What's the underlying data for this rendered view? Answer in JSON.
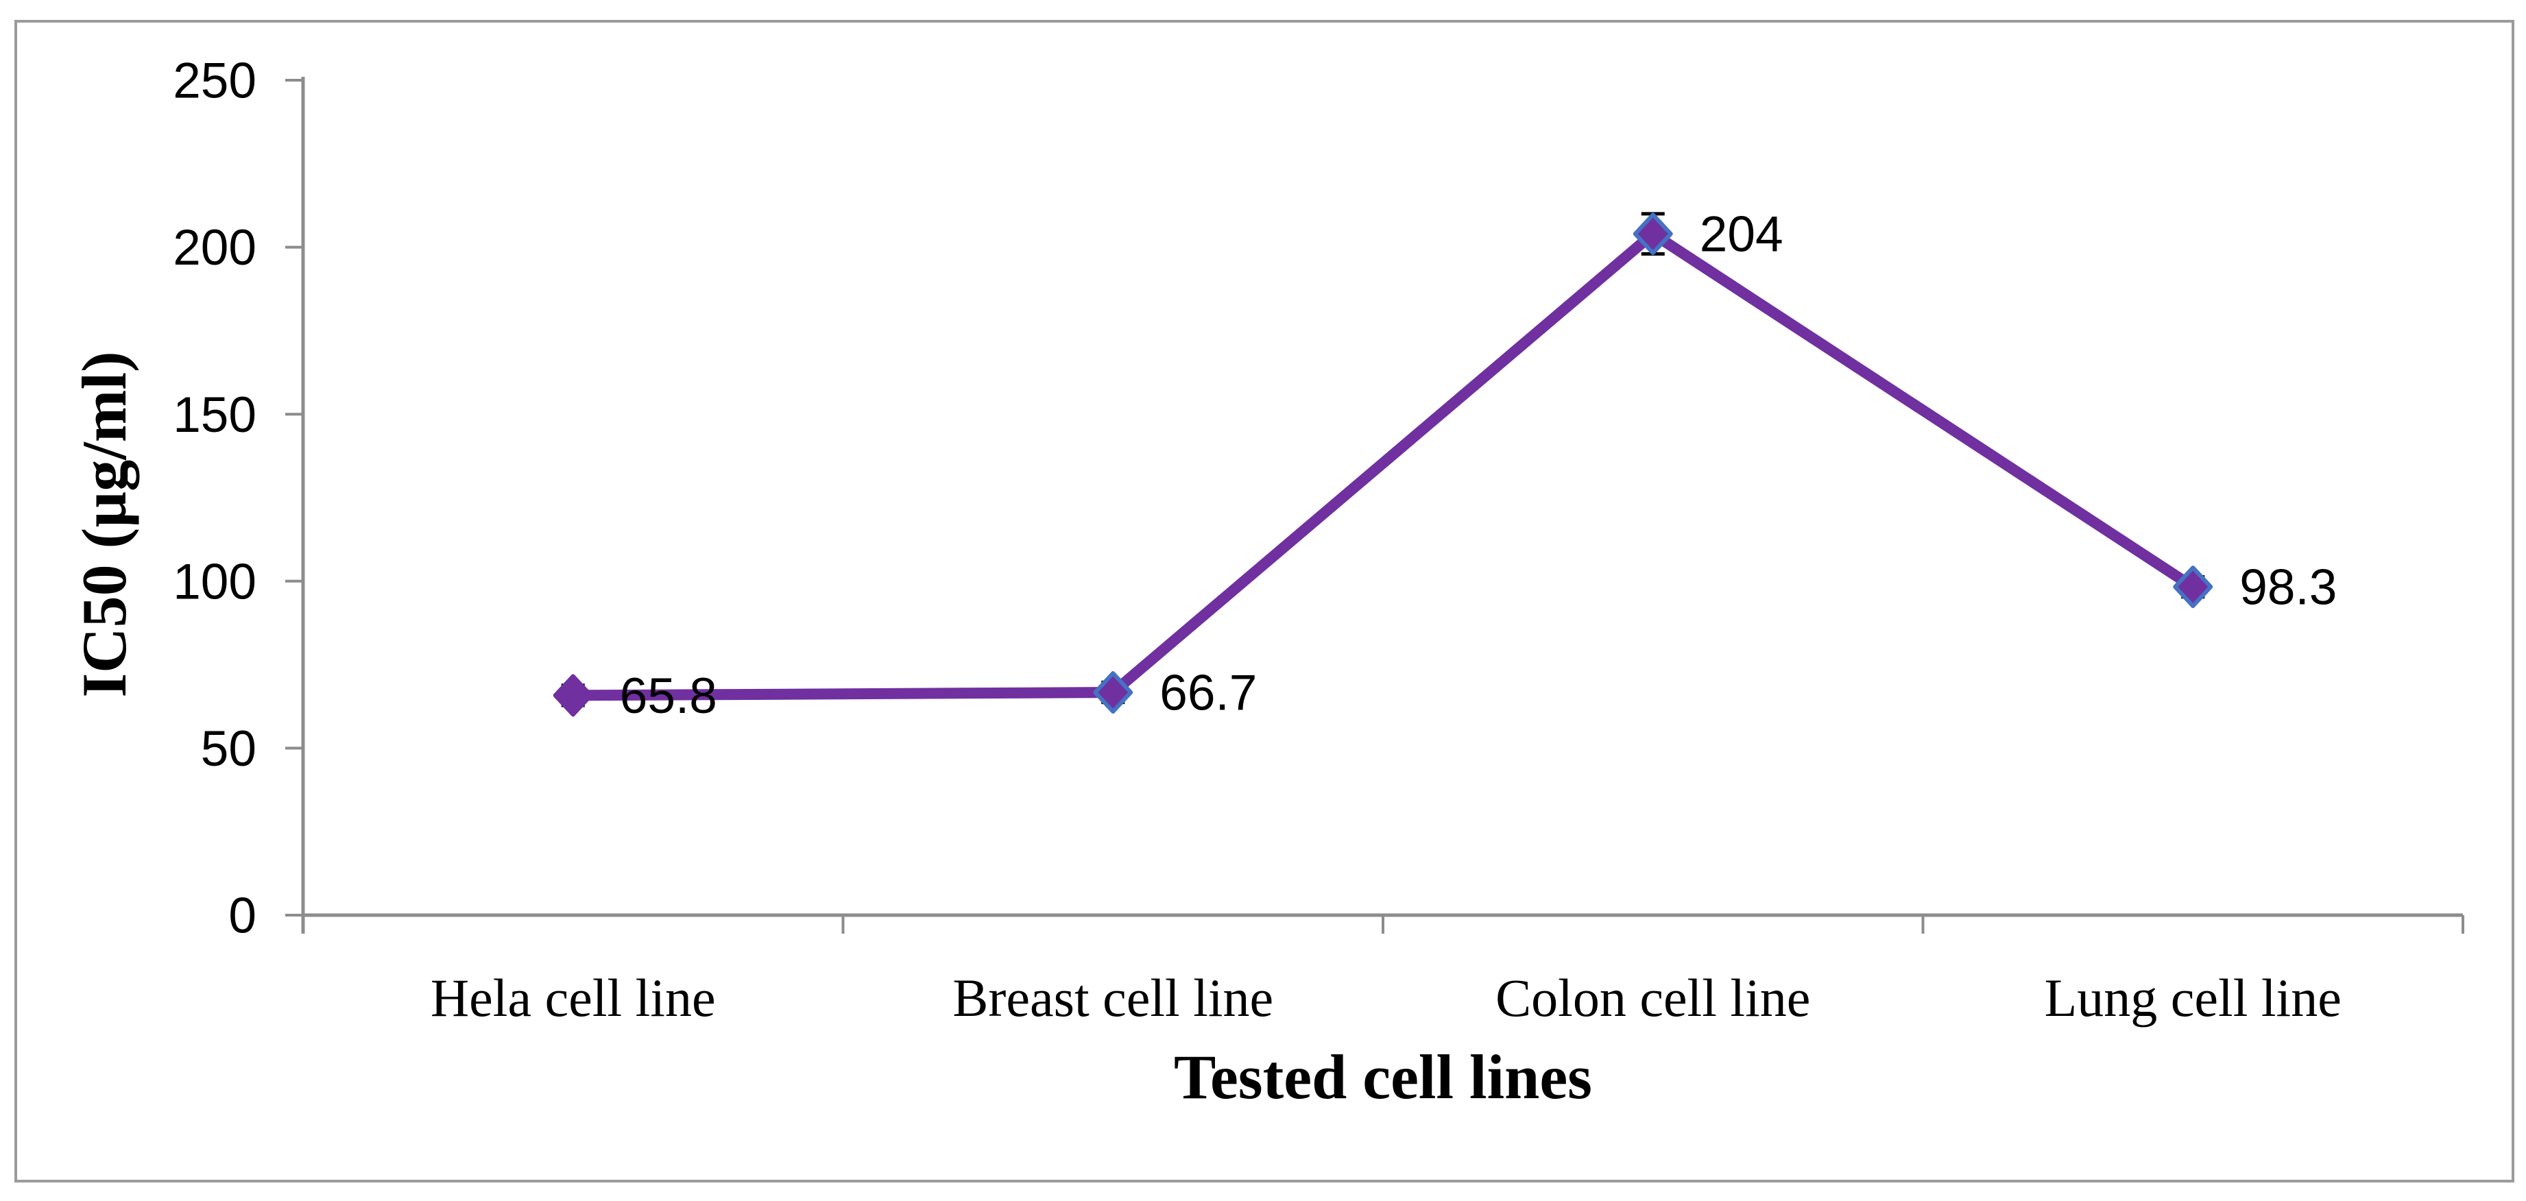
{
  "chart_data": {
    "type": "line",
    "title": "",
    "xlabel": "Tested cell lines",
    "ylabel": "IC50 (µg/ml)",
    "categories": [
      "Hela cell line",
      "Breast cell line",
      "Colon cell line",
      "Lung cell line"
    ],
    "series": [
      {
        "name": "IC50",
        "values": [
          65.8,
          66.7,
          204,
          98.3
        ],
        "point_labels": [
          "65.8",
          "66.7",
          "204",
          "98.3"
        ],
        "error_bars": [
          3,
          3,
          6,
          3
        ]
      }
    ],
    "ylim": [
      0,
      250
    ],
    "yticks": [
      0,
      50,
      100,
      150,
      200,
      250
    ],
    "ytick_labels": [
      "0",
      "50",
      "100",
      "150",
      "200",
      "250"
    ],
    "grid": false,
    "legend": "none",
    "marker": "diamond",
    "marker_border_visible": [
      false,
      true,
      true,
      true
    ],
    "colors": {
      "line": "#7030A0",
      "marker_fill": "#7030A0",
      "marker_border": "#4472C4",
      "error_bar": "#000000",
      "axis": "#8C8C8C",
      "text": "#000000",
      "frame_border": "#9B9B9B",
      "background": "#FFFFFF"
    }
  }
}
